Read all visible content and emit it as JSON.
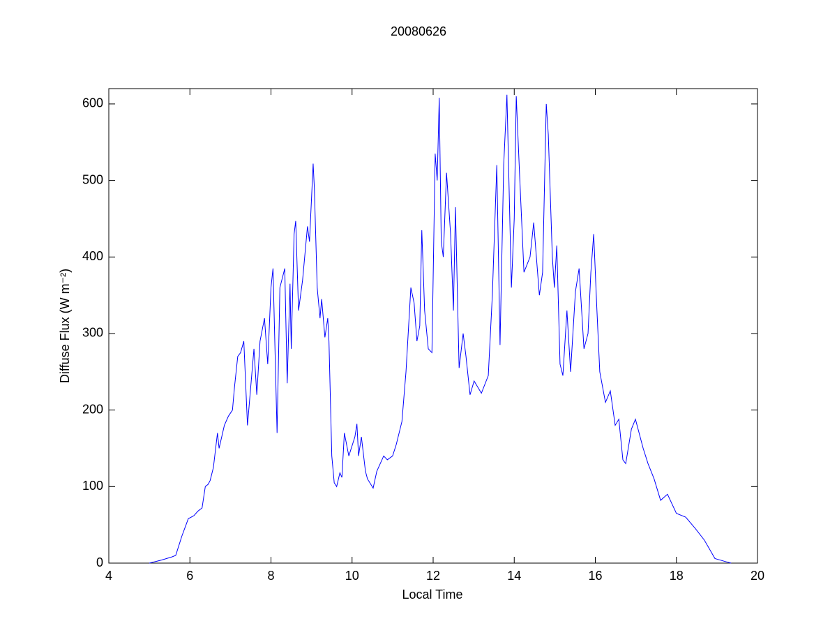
{
  "chart_data": {
    "type": "line",
    "title": "20080626",
    "xlabel": "Local Time",
    "ylabel": "Diffuse Flux (W m⁻²)",
    "xlim": [
      4,
      20
    ],
    "xticks": [
      4,
      6,
      8,
      10,
      12,
      14,
      16,
      18,
      20
    ],
    "ylim": [
      0,
      620
    ],
    "yticks": [
      0,
      100,
      200,
      300,
      400,
      500,
      600
    ],
    "grid": false,
    "series": [
      {
        "color": "#0000ff",
        "x": [
          5.0,
          5.3,
          5.55,
          5.65,
          5.8,
          5.96,
          6.1,
          6.2,
          6.3,
          6.38,
          6.45,
          6.5,
          6.58,
          6.68,
          6.72,
          6.85,
          6.95,
          7.05,
          7.1,
          7.18,
          7.25,
          7.33,
          7.42,
          7.58,
          7.65,
          7.73,
          7.84,
          7.92,
          8.0,
          8.05,
          8.15,
          8.22,
          8.34,
          8.4,
          8.47,
          8.5,
          8.57,
          8.61,
          8.68,
          8.78,
          8.9,
          8.95,
          9.04,
          9.07,
          9.14,
          9.21,
          9.25,
          9.33,
          9.4,
          9.43,
          9.5,
          9.56,
          9.62,
          9.7,
          9.75,
          9.81,
          9.92,
          10.07,
          10.12,
          10.16,
          10.23,
          10.33,
          10.38,
          10.52,
          10.61,
          10.78,
          10.87,
          11.0,
          11.09,
          11.23,
          11.33,
          11.45,
          11.53,
          11.6,
          11.67,
          11.72,
          11.79,
          11.88,
          11.97,
          12.05,
          12.1,
          12.15,
          12.2,
          12.25,
          12.33,
          12.43,
          12.5,
          12.55,
          12.64,
          12.74,
          12.81,
          12.91,
          13.01,
          13.19,
          13.36,
          13.46,
          13.57,
          13.65,
          13.74,
          13.82,
          13.93,
          14.0,
          14.05,
          14.13,
          14.24,
          14.39,
          14.48,
          14.62,
          14.7,
          14.79,
          14.84,
          14.94,
          14.99,
          15.05,
          15.13,
          15.2,
          15.3,
          15.39,
          15.51,
          15.6,
          15.72,
          15.82,
          15.89,
          15.96,
          16.04,
          16.11,
          16.25,
          16.37,
          16.49,
          16.58,
          16.68,
          16.75,
          16.89,
          16.99,
          17.18,
          17.3,
          17.45,
          17.61,
          17.78,
          18.0,
          18.23,
          18.47,
          18.69,
          18.95,
          19.21,
          19.35
        ],
        "values": [
          0,
          4,
          8,
          10,
          35,
          58,
          62,
          68,
          72,
          100,
          103,
          108,
          125,
          170,
          150,
          180,
          192,
          200,
          230,
          270,
          275,
          290,
          180,
          280,
          220,
          290,
          320,
          260,
          360,
          385,
          170,
          360,
          385,
          235,
          365,
          280,
          430,
          447,
          330,
          370,
          440,
          420,
          522,
          490,
          360,
          320,
          345,
          295,
          320,
          290,
          140,
          105,
          100,
          118,
          112,
          170,
          140,
          165,
          182,
          140,
          165,
          120,
          110,
          98,
          120,
          140,
          135,
          140,
          155,
          185,
          250,
          360,
          340,
          290,
          310,
          435,
          330,
          280,
          275,
          535,
          500,
          608,
          420,
          400,
          510,
          430,
          330,
          465,
          255,
          300,
          270,
          220,
          238,
          222,
          245,
          350,
          520,
          285,
          520,
          612,
          360,
          450,
          610,
          510,
          380,
          400,
          445,
          350,
          380,
          600,
          560,
          400,
          360,
          415,
          260,
          245,
          330,
          250,
          355,
          385,
          280,
          300,
          380,
          430,
          330,
          250,
          210,
          225,
          180,
          188,
          135,
          130,
          175,
          188,
          150,
          130,
          110,
          82,
          90,
          65,
          60,
          45,
          30,
          6,
          2,
          0
        ]
      }
    ]
  }
}
